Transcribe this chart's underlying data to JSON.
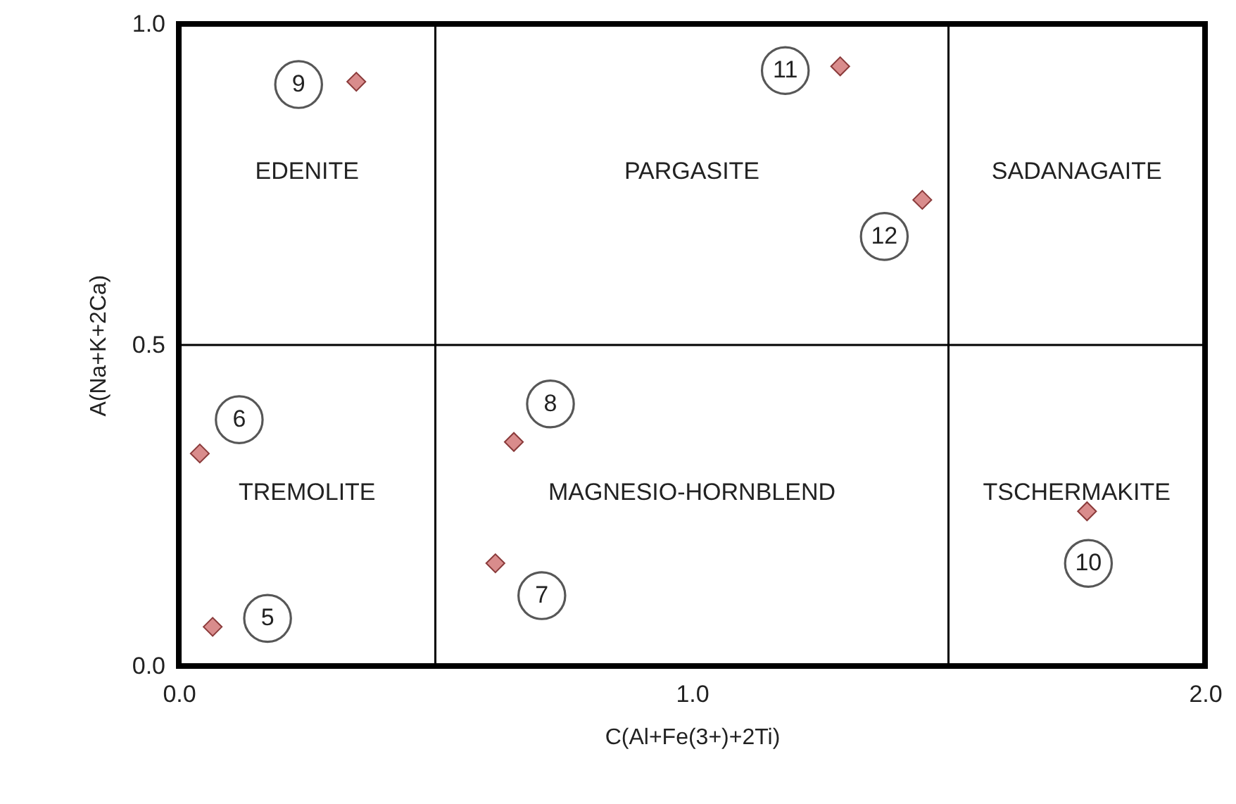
{
  "chart_data": {
    "type": "scatter",
    "xlabel": "C(Al+Fe(3+)+2Ti)",
    "ylabel": "A(Na+K+2Ca)",
    "x": [
      0.346,
      1.289,
      1.449,
      0.041,
      0.066,
      0.653,
      0.617,
      1.77
    ],
    "series": [
      {
        "color": "#d98c8c",
        "values": [
          0.91,
          0.934,
          0.726,
          0.331,
          0.061,
          0.349,
          0.16,
          0.241
        ]
      }
    ],
    "marker": "diamond",
    "xlim": [
      0,
      2
    ],
    "ylim": [
      0,
      1
    ],
    "xticks": [
      {
        "value": 0,
        "label": "0.0"
      },
      {
        "value": 1,
        "label": "1.0"
      },
      {
        "value": 2,
        "label": "2.0"
      }
    ],
    "yticks": [
      {
        "value": 0,
        "label": "0.0"
      },
      {
        "value": 0.5,
        "label": "0.5"
      },
      {
        "value": 1,
        "label": "1.0"
      }
    ],
    "ref_lines": [
      {
        "axis": "x",
        "value": 0.5
      },
      {
        "axis": "x",
        "value": 1.5
      },
      {
        "axis": "y",
        "value": 0.5
      }
    ],
    "annotations": [
      {
        "text": "9",
        "x": 0.346,
        "y": 0.91
      },
      {
        "text": "11",
        "x": 1.289,
        "y": 0.934
      },
      {
        "text": "12",
        "x": 1.449,
        "y": 0.726
      },
      {
        "text": "6",
        "x": 0.041,
        "y": 0.331
      },
      {
        "text": "5",
        "x": 0.066,
        "y": 0.061
      },
      {
        "text": "8",
        "x": 0.653,
        "y": 0.349
      },
      {
        "text": "7",
        "x": 0.617,
        "y": 0.16
      },
      {
        "text": "10",
        "x": 1.77,
        "y": 0.241
      },
      "EDENITE",
      "PARGASITE",
      "SADANAGAITE",
      "TREMOLITE",
      "MAGNESIO-HORNBLEND",
      "TSCHERMAKITE"
    ]
  }
}
